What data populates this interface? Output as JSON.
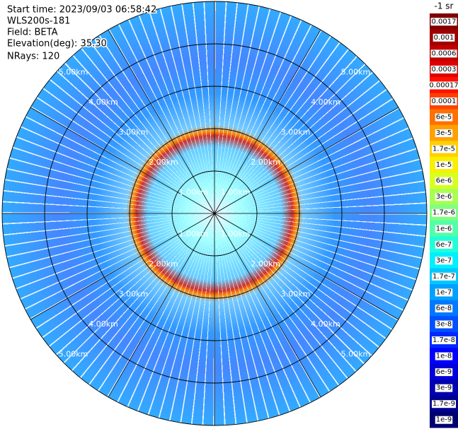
{
  "info": [
    "Start time: 2023/09/03 06:58:42",
    "WLS200s-181",
    "Field: BETA",
    "Elevation(deg): 35.30",
    "NRays: 120"
  ],
  "ring_labels": [
    "1.00km",
    "2.00km",
    "3.00km",
    "4.00km",
    "5.00km"
  ],
  "colorbar": {
    "title": "-1 sr",
    "levels": [
      {
        "label": "0.0017",
        "color": "#800000"
      },
      {
        "label": "0.001",
        "color": "#a00000"
      },
      {
        "label": "0.0006",
        "color": "#c00000"
      },
      {
        "label": "0.0003",
        "color": "#e00000"
      },
      {
        "label": "0.00017",
        "color": "#ff1000"
      },
      {
        "label": "0.0001",
        "color": "#ff4000"
      },
      {
        "label": "6e-5",
        "color": "#ff7000"
      },
      {
        "label": "3e-5",
        "color": "#ffa000"
      },
      {
        "label": "1.7e-5",
        "color": "#ffd000"
      },
      {
        "label": "1e-5",
        "color": "#f8f000"
      },
      {
        "label": "6e-6",
        "color": "#d8ff20"
      },
      {
        "label": "3e-6",
        "color": "#a8ff50"
      },
      {
        "label": "1.7e-6",
        "color": "#80ff80"
      },
      {
        "label": "1e-6",
        "color": "#50ffa8"
      },
      {
        "label": "6e-7",
        "color": "#20ffd8"
      },
      {
        "label": "3e-7",
        "color": "#00f0ff"
      },
      {
        "label": "1.7e-7",
        "color": "#00c8ff"
      },
      {
        "label": "1e-7",
        "color": "#00a0ff"
      },
      {
        "label": "6e-8",
        "color": "#0078ff"
      },
      {
        "label": "3e-8",
        "color": "#0050ff"
      },
      {
        "label": "1.7e-8",
        "color": "#0028ff"
      },
      {
        "label": "1e-8",
        "color": "#0000ff"
      },
      {
        "label": "6e-9",
        "color": "#0000d8"
      },
      {
        "label": "3e-9",
        "color": "#0000b0"
      },
      {
        "label": "1.7e-9",
        "color": "#000090"
      },
      {
        "label": "1e-9",
        "color": "#000070"
      }
    ]
  }
}
